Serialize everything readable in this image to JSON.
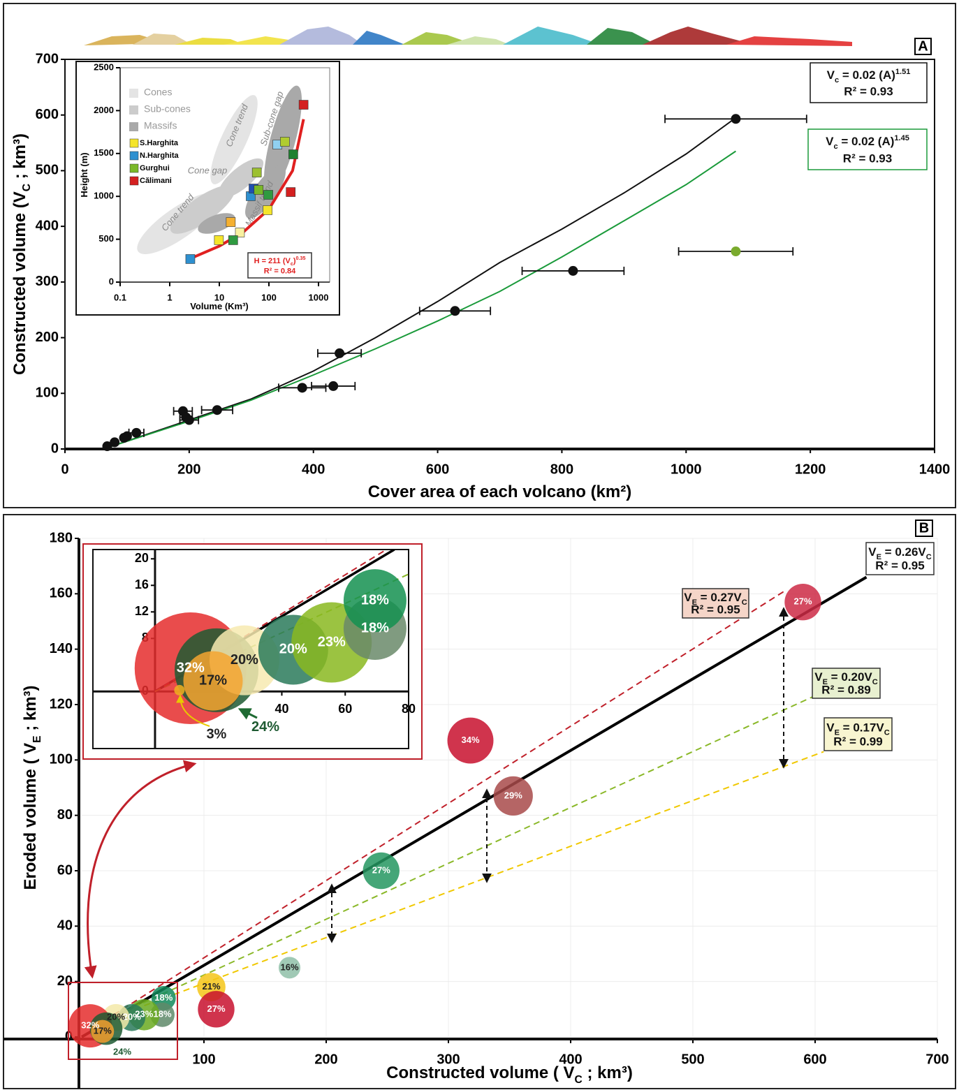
{
  "chart_data": [
    {
      "type": "scatter",
      "panel": "A",
      "xlabel": [
        "Cover area of each volcano (km²)"
      ],
      "ylabel": [
        "Constructed volume (V",
        "C",
        " ; km³)"
      ],
      "xlim": [
        0,
        1400
      ],
      "xticks": [
        0,
        200,
        400,
        600,
        800,
        1000,
        1200,
        1400
      ],
      "ylim": [
        0,
        700
      ],
      "yticks": [
        0,
        100,
        200,
        300,
        400,
        500,
        600,
        700
      ],
      "series": [
        {
          "color": "#111111",
          "x": [
            68,
            80,
            95,
            100,
            115,
            190,
            195,
            200,
            245,
            382,
            432,
            442,
            628,
            818,
            1080
          ],
          "values": [
            5,
            12,
            20,
            23,
            29,
            68,
            57,
            52,
            70,
            110,
            113,
            172,
            248,
            320,
            593
          ],
          "xerr": [
            0,
            0,
            0,
            0,
            12,
            15,
            10,
            15,
            25,
            38,
            35,
            35,
            57,
            82,
            114
          ]
        },
        {
          "color": "#7aab2e",
          "x": [
            1080
          ],
          "values": [
            355
          ],
          "xerr": [
            92
          ]
        }
      ],
      "fits": [
        {
          "color": "#111111",
          "x": [
            70,
            200,
            300,
            400,
            500,
            600,
            700,
            800,
            900,
            1000,
            1080
          ],
          "values": [
            3,
            52,
            90,
            140,
            200,
            265,
            335,
            395,
            460,
            530,
            595
          ],
          "equation": [
            "V",
            "c",
            " = 0.02 (A)",
            "1.51"
          ],
          "r2": "R² = 0.93"
        },
        {
          "color": "#1a9a3a",
          "x": [
            70,
            200,
            300,
            400,
            500,
            600,
            700,
            800,
            900,
            1000,
            1080
          ],
          "values": [
            3,
            50,
            88,
            133,
            180,
            230,
            283,
            345,
            410,
            475,
            535
          ],
          "equation": [
            "V",
            "c",
            " = 0.02 (A)",
            "1.45"
          ],
          "r2": "R² = 0.93"
        }
      ]
    },
    {
      "type": "scatter",
      "xscale": "log",
      "xlabel": [
        "Volume (Km³)"
      ],
      "ylabel": [
        "Height (m)"
      ],
      "xlim": [
        0.1,
        1000
      ],
      "xticks": [
        0.1,
        1,
        10,
        100,
        1000
      ],
      "ylim": [
        0,
        2500
      ],
      "yticks": [
        0,
        500,
        1000,
        1500,
        2000,
        2500
      ],
      "shapes": [
        {
          "name": "Cones",
          "color": "#e4e4e4"
        },
        {
          "name": "Sub-cones",
          "color": "#cccccc"
        },
        {
          "name": "Massifs",
          "color": "#a9a9a9"
        }
      ],
      "annotations": [
        "Cone trend",
        "Cone trend",
        "Sub-cone gap",
        "Cone gap",
        "Massif trend"
      ],
      "series": [
        {
          "name": "S.Harghita",
          "color": "#f5e52a",
          "x": [
            94,
            9.8,
            26,
            17
          ],
          "values": [
            839,
            489,
            578,
            700
          ],
          "point_colors": [
            "#f5e52a",
            "#f5e52a",
            "#f8f0a0",
            "#f5b030"
          ]
        },
        {
          "name": "N.Harghita",
          "color": "#2e90d0",
          "x": [
            2.6,
            43,
            49,
            148
          ],
          "values": [
            269,
            1002,
            1091,
            1604
          ],
          "point_colors": [
            "#2e90d0",
            "#2e90d0",
            "#2050b0",
            "#90d0f0"
          ]
        },
        {
          "name": "Gurghui",
          "color": "#7ab828",
          "x": [
            57,
            62,
            97,
            210,
            310,
            19
          ],
          "values": [
            1278,
            1075,
            1018,
            1637,
            1490,
            489
          ],
          "point_colors": [
            "#9cc030",
            "#7ab828",
            "#2f9a40",
            "#b0cc30",
            "#208030",
            "#2f9a40"
          ]
        },
        {
          "name": "Călimani",
          "color": "#d42020",
          "x": [
            500,
            275
          ],
          "values": [
            2068,
            1050
          ],
          "point_colors": [
            "#d42020",
            "#d42020"
          ]
        }
      ],
      "fits": [
        {
          "color": "#e02020",
          "x": [
            2.5,
            10,
            30,
            100,
            300,
            500
          ],
          "values": [
            270,
            420,
            580,
            850,
            1300,
            1900
          ],
          "equation": [
            "H = 211 (V",
            "c",
            ")",
            "0.35"
          ],
          "r2": "R² = 0.84"
        }
      ]
    },
    {
      "type": "bubble",
      "panel": "B",
      "grid": true,
      "xlabel": [
        "Constructed volume ( V",
        "C",
        " ; km³)"
      ],
      "ylabel": [
        "Eroded volume ( V",
        "E",
        " ; km³)"
      ],
      "xlim": [
        0,
        700
      ],
      "xticks": [
        100,
        200,
        300,
        400,
        500,
        600,
        700
      ],
      "ylim": [
        0,
        180
      ],
      "yticks": [
        0,
        20,
        40,
        60,
        80,
        100,
        120,
        140,
        160,
        180
      ],
      "x": [
        590,
        318,
        353,
        245,
        170,
        106,
        110,
        67,
        66,
        51,
        41,
        28,
        7,
        20,
        17
      ],
      "values": [
        157,
        107,
        87,
        60,
        25,
        18,
        10,
        14,
        8,
        8,
        7,
        7,
        4,
        3,
        2
      ],
      "sizes": [
        27,
        34,
        29,
        27,
        16,
        21,
        27,
        18,
        18,
        23,
        20,
        20,
        32,
        24,
        17
      ],
      "value_labels": [
        "27%",
        "34%",
        "29%",
        "27%",
        "16%",
        "21%",
        "27%",
        "18%",
        "18%",
        "23%",
        "20%",
        "20%",
        "32%",
        "24%",
        "17%"
      ],
      "colors": [
        "#cc2a45",
        "#c8102e",
        "#a84a4a",
        "#259660",
        "#8fbfa8",
        "#f5c518",
        "#c8102e",
        "#12885a",
        "#5f8a6a",
        "#6aaa20",
        "#2a7a5a",
        "#f3e9a8",
        "#e52d2d",
        "#1e5a32",
        "#f2a030"
      ],
      "lines": [
        {
          "color": "#000000",
          "dashed": false,
          "x": [
            0,
            642
          ],
          "values": [
            0,
            166
          ],
          "equation": [
            "V",
            "E",
            " = 0.26V",
            "C"
          ],
          "r2": "R² = 0.95",
          "box_color": "#ffffff"
        },
        {
          "color": "#c0202a",
          "dashed": true,
          "x": [
            19,
            575
          ],
          "values": [
            6,
            161
          ],
          "equation": [
            "V",
            "E",
            " = 0.27V",
            "C"
          ],
          "r2": "R² = 0.95",
          "box_color": "#f5d5c8"
        },
        {
          "color": "#8ab828",
          "dashed": true,
          "x": [
            19,
            599
          ],
          "values": [
            6,
            123
          ],
          "equation": [
            "V",
            "E",
            " = 0.20V",
            "C"
          ],
          "r2": "R² = 0.89",
          "box_color": "#e8f0d0"
        },
        {
          "color": "#f0c800",
          "dashed": true,
          "x": [
            19,
            607
          ],
          "values": [
            6,
            103
          ],
          "equation": [
            "V",
            "E",
            " = 0.17V",
            "C"
          ],
          "r2": "R² = 0.99",
          "box_color": "#f8f5d0"
        }
      ]
    },
    {
      "type": "bubble",
      "xlim": [
        -19.6,
        80
      ],
      "xticks": [
        40,
        60,
        80
      ],
      "ylim": [
        -8.6,
        21.4
      ],
      "yticks": [
        0,
        8,
        12,
        16,
        20
      ],
      "x": [
        11.2,
        19.4,
        28.2,
        18.3,
        43.6,
        55.7,
        69.4,
        69.4,
        7.7
      ],
      "values": [
        3.5,
        3.2,
        4.7,
        1.6,
        6.3,
        7.4,
        9.5,
        13.7,
        0.2
      ],
      "sizes": [
        32,
        24,
        20,
        17,
        20,
        23,
        18,
        18,
        3
      ],
      "value_labels": [
        "32%",
        "24%",
        "20%",
        "17%",
        "20%",
        "23%",
        "18%",
        "18%",
        "3%"
      ],
      "colors": [
        "#e52d2d",
        "#1e5a32",
        "#f7eab0",
        "#f5a530",
        "#2a7a5a",
        "#8ab820",
        "#6a8a6a",
        "#149050",
        "#f0b020"
      ],
      "lines": [
        {
          "color": "#000000",
          "dashed": false,
          "x": [
            0,
            75.5
          ],
          "values": [
            0,
            21.4
          ]
        },
        {
          "color": "#c0202a",
          "dashed": true,
          "x": [
            0,
            73
          ],
          "values": [
            0,
            21.4
          ]
        },
        {
          "color": "#8ab828",
          "dashed": true,
          "x": [
            0,
            80
          ],
          "values": [
            0,
            17.7
          ]
        }
      ]
    }
  ]
}
